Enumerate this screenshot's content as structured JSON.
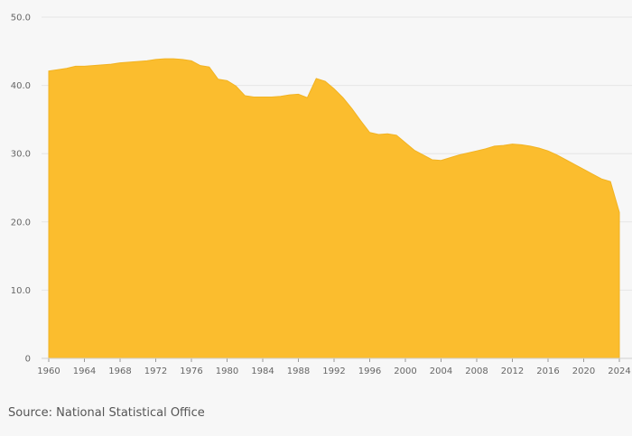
{
  "chart_data": {
    "type": "area",
    "title": "",
    "xlabel": "",
    "ylabel": "",
    "xlim": [
      1960,
      2024
    ],
    "ylim": [
      0,
      50
    ],
    "grid": true,
    "legend": "none",
    "fill_color": "#fbbd2e",
    "x_ticks": [
      1960,
      1964,
      1968,
      1972,
      1976,
      1980,
      1984,
      1988,
      1992,
      1996,
      2000,
      2004,
      2008,
      2012,
      2016,
      2020,
      2024
    ],
    "y_ticks": [
      {
        "value": 0,
        "label": "0"
      },
      {
        "value": 10,
        "label": "10.0"
      },
      {
        "value": 20,
        "label": "20.0"
      },
      {
        "value": 30,
        "label": "30.0"
      },
      {
        "value": 40,
        "label": "40.0"
      },
      {
        "value": 50,
        "label": "50.0"
      }
    ],
    "series": [
      {
        "x": [
          1960,
          1961,
          1962,
          1963,
          1964,
          1965,
          1966,
          1967,
          1968,
          1969,
          1970,
          1971,
          1972,
          1973,
          1974,
          1975,
          1976,
          1977,
          1978,
          1979,
          1980,
          1981,
          1982,
          1983,
          1984,
          1985,
          1986,
          1987,
          1988,
          1989,
          1990,
          1991,
          1992,
          1993,
          1994,
          1995,
          1996,
          1997,
          1998,
          1999,
          2000,
          2001,
          2002,
          2003,
          2004,
          2005,
          2006,
          2007,
          2008,
          2009,
          2010,
          2011,
          2012,
          2013,
          2014,
          2015,
          2016,
          2017,
          2018,
          2019,
          2020,
          2021,
          2022,
          2023,
          2024
        ],
        "values": [
          42.1,
          42.3,
          42.5,
          42.8,
          42.8,
          42.9,
          43.0,
          43.1,
          43.3,
          43.4,
          43.5,
          43.6,
          43.8,
          43.9,
          43.9,
          43.8,
          43.6,
          42.9,
          42.7,
          40.9,
          40.7,
          39.9,
          38.5,
          38.3,
          38.3,
          38.3,
          38.4,
          38.6,
          38.7,
          38.2,
          41.0,
          40.6,
          39.5,
          38.2,
          36.6,
          34.8,
          33.1,
          32.8,
          32.9,
          32.7,
          31.6,
          30.5,
          29.8,
          29.1,
          29.0,
          29.4,
          29.8,
          30.1,
          30.4,
          30.7,
          31.1,
          31.2,
          31.4,
          31.3,
          31.1,
          30.8,
          30.4,
          29.8,
          29.1,
          28.4,
          27.7,
          27.0,
          26.3,
          25.9,
          21.4
        ]
      }
    ]
  },
  "source": "Source: National Statistical Office"
}
